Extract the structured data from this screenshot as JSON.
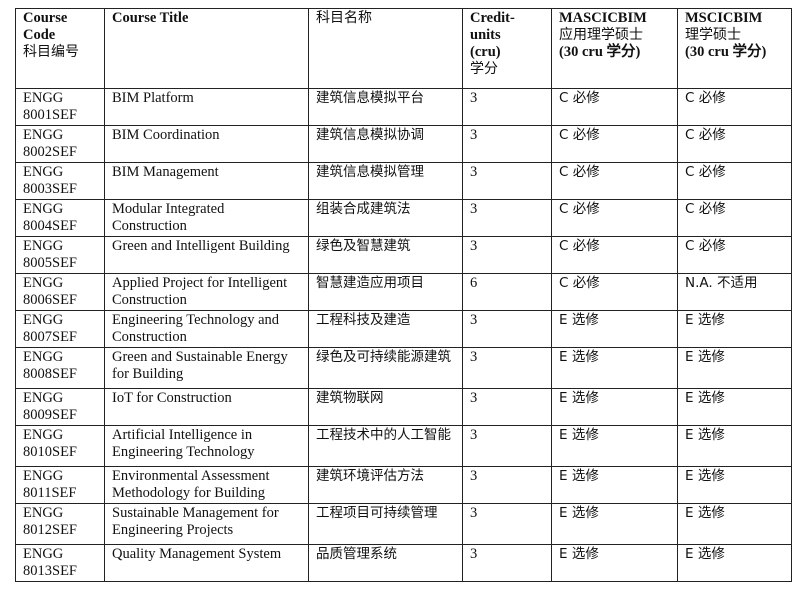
{
  "headers": [
    "Course Code 科目编号",
    "Course Title",
    "科目名称",
    "Credit-units (cru) 学分",
    "MASCICBIM 应用理学硕士 (30 cru 学分)",
    "MSCICBIM 理学硕士 (30 cru 学分)"
  ],
  "header_lines": [
    [
      "Course",
      "Code",
      "科目编号"
    ],
    [
      "Course Title"
    ],
    [
      "科目名称"
    ],
    [
      "Credit-",
      "units",
      "(cru)",
      "学分"
    ],
    [
      "MASCICBIM",
      "应用理学硕士",
      "(30 cru 学分)"
    ],
    [
      "MSCICBIM",
      "理学硕士",
      "(30 cru 学分)"
    ]
  ],
  "rows": [
    [
      "ENGG 8001SEF",
      "BIM Platform",
      "建筑信息模拟平台",
      "3",
      "C 必修",
      "C 必修"
    ],
    [
      "ENGG 8002SEF",
      "BIM Coordination",
      "建筑信息模拟协调",
      "3",
      "C 必修",
      "C 必修"
    ],
    [
      "ENGG 8003SEF",
      "BIM Management",
      "建筑信息模拟管理",
      "3",
      "C 必修",
      "C 必修"
    ],
    [
      "ENGG 8004SEF",
      "Modular Integrated Construction",
      "组装合成建筑法",
      "3",
      "C 必修",
      "C 必修"
    ],
    [
      "ENGG 8005SEF",
      "Green and Intelligent Building",
      "绿色及智慧建筑",
      "3",
      "C 必修",
      "C 必修"
    ],
    [
      "ENGG 8006SEF",
      "Applied Project for Intelligent Construction",
      "智慧建造应用项目",
      "6",
      "C 必修",
      "N.A. 不适用"
    ],
    [
      "ENGG 8007SEF",
      "Engineering Technology and Construction",
      "工程科技及建造",
      "3",
      "E 选修",
      "E 选修"
    ],
    [
      "ENGG 8008SEF",
      "Green and Sustainable Energy for Building",
      "绿色及可持续能源建筑",
      "3",
      "E 选修",
      "E 选修"
    ],
    [
      "ENGG 8009SEF",
      "IoT for Construction",
      "建筑物联网",
      "3",
      "E 选修",
      "E 选修"
    ],
    [
      "ENGG 8010SEF",
      "Artificial Intelligence in Engineering Technology",
      "工程技术中的人工智能",
      "3",
      "E 选修",
      "E 选修"
    ],
    [
      "ENGG 8011SEF",
      "Environmental Assessment Methodology for Building",
      "建筑环境评估方法",
      "3",
      "E 选修",
      "E 选修"
    ],
    [
      "ENGG 8012SEF",
      "Sustainable Management for Engineering Projects",
      "工程项目可持续管理",
      "3",
      "E 选修",
      "E 选修"
    ],
    [
      "ENGG 8013SEF",
      "Quality Management System",
      "品质管理系统",
      "3",
      "E 选修",
      "E 选修"
    ]
  ]
}
